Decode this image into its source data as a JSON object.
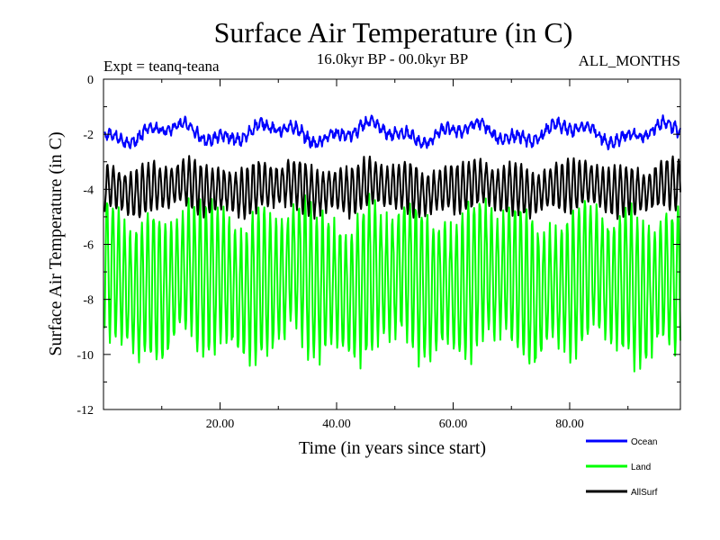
{
  "chart_data": {
    "type": "line",
    "title": "Surface Air Temperature (in C)",
    "subtitle": "16.0kyr BP - 00.0kyr BP",
    "experiment_label": "Expt = teanq-teana",
    "months_label": "ALL_MONTHS",
    "xlabel": "Time (in years since start)",
    "ylabel": "Surface Air Temperature (in C)",
    "xlim": [
      0,
      99
    ],
    "ylim": [
      -12,
      0
    ],
    "xticks": [
      20,
      40,
      60,
      80
    ],
    "xtick_labels": [
      "20.00",
      "40.00",
      "60.00",
      "80.00"
    ],
    "yticks": [
      0,
      -2,
      -4,
      -6,
      -8,
      -10,
      -12
    ],
    "ytick_labels": [
      "0",
      "-2",
      "-4",
      "-6",
      "-8",
      "-10",
      "-12"
    ],
    "grid": false,
    "legend_position": "bottom-right, below plot",
    "series": [
      {
        "name": "Ocean",
        "color": "#0000ff",
        "mean": -1.95,
        "seasonal_amplitude": 0.15,
        "noise": 0.12,
        "drift": 0.25,
        "x_start": 0.2,
        "x_end": 99,
        "step": 0.1
      },
      {
        "name": "Land",
        "color": "#00ff00",
        "mean": -7.35,
        "seasonal_amplitude": 2.4,
        "noise": 0.35,
        "drift": 0.35,
        "x_start": 0.2,
        "x_end": 99,
        "step": 0.1
      },
      {
        "name": "AllSurf",
        "color": "#000000",
        "mean": -3.95,
        "seasonal_amplitude": 0.8,
        "noise": 0.12,
        "drift": 0.15,
        "x_start": 0.2,
        "x_end": 99,
        "step": 0.1
      }
    ]
  }
}
